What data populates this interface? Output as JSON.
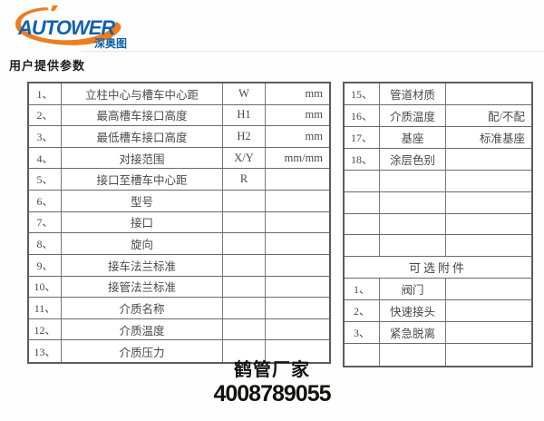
{
  "logo": {
    "brand": "AUTOWER",
    "subtitle": "深奥图"
  },
  "heading": "用户提供参数",
  "footer": {
    "company": "鹤管厂家",
    "phone": "4008789055"
  },
  "colors": {
    "brand_blue": "#1161ad",
    "brand_orange": "#ee7d1f",
    "table_text": "#4a4a4a",
    "table_border": "#6a6a6a",
    "footer_text": "#141110"
  },
  "left_table": {
    "rows": [
      {
        "num": "1、",
        "name": "立柱中心与槽车中心距",
        "symbol": "W",
        "unit": "mm"
      },
      {
        "num": "2、",
        "name": "最高槽车接口高度",
        "symbol": "H1",
        "unit": "mm"
      },
      {
        "num": "3、",
        "name": "最低槽车接口高度",
        "symbol": "H2",
        "unit": "mm"
      },
      {
        "num": "4、",
        "name": "对接范围",
        "symbol": "X/Y",
        "unit": "mm/mm"
      },
      {
        "num": "5、",
        "name": "接口至槽车中心距",
        "symbol": "R",
        "unit": ""
      },
      {
        "num": "6、",
        "name": "型号",
        "symbol": "",
        "unit": ""
      },
      {
        "num": "7、",
        "name": "接口",
        "symbol": "",
        "unit": ""
      },
      {
        "num": "8、",
        "name": "旋向",
        "symbol": "",
        "unit": ""
      },
      {
        "num": "9、",
        "name": "接车法兰标准",
        "symbol": "",
        "unit": ""
      },
      {
        "num": "10、",
        "name": "接管法兰标准",
        "symbol": "",
        "unit": ""
      },
      {
        "num": "11、",
        "name": "介质名称",
        "symbol": "",
        "unit": ""
      },
      {
        "num": "12、",
        "name": "介质温度",
        "symbol": "",
        "unit": ""
      },
      {
        "num": "13、",
        "name": "介质压力",
        "symbol": "",
        "unit": ""
      }
    ]
  },
  "right_table": {
    "rows": [
      {
        "type": "data",
        "num": "15、",
        "name": "管道材质",
        "value": ""
      },
      {
        "type": "data",
        "num": "16、",
        "name": "介质温度",
        "value": "配/不配"
      },
      {
        "type": "data",
        "num": "17、",
        "name": "基座",
        "value": "标准基座"
      },
      {
        "type": "data",
        "num": "18、",
        "name": "涂层色别",
        "value": ""
      },
      {
        "type": "empty"
      },
      {
        "type": "empty"
      },
      {
        "type": "empty"
      },
      {
        "type": "empty"
      },
      {
        "type": "header",
        "label": "可选附件"
      },
      {
        "type": "data",
        "num": "1、",
        "name": "阀门",
        "value": ""
      },
      {
        "type": "data",
        "num": "2、",
        "name": "快速接头",
        "value": ""
      },
      {
        "type": "data",
        "num": "3、",
        "name": "紧急脱离",
        "value": ""
      },
      {
        "type": "empty"
      }
    ]
  }
}
